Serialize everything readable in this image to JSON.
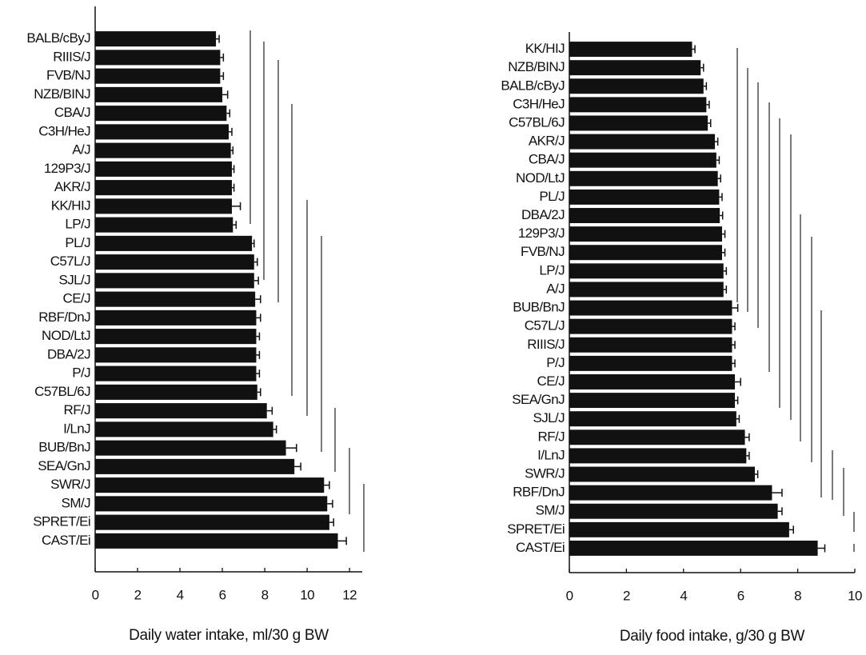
{
  "chart_data": [
    {
      "type": "bar",
      "orientation": "horizontal",
      "color": "#111111",
      "xlabel": "Daily water intake, ml/30 g BW",
      "categories": [
        "BALB/cByJ",
        "RIIIS/J",
        "FVB/NJ",
        "NZB/BINJ",
        "CBA/J",
        "C3H/HeJ",
        "A/J",
        "129P3/J",
        "AKR/J",
        "KK/HIJ",
        "LP/J",
        "PL/J",
        "C57L/J",
        "SJL/J",
        "CE/J",
        "RBF/DnJ",
        "NOD/LtJ",
        "DBA/2J",
        "P/J",
        "C57BL/6J",
        "RF/J",
        "I/LnJ",
        "BUB/BnJ",
        "SEA/GnJ",
        "SWR/J",
        "SM/J",
        "SPRET/Ei",
        "CAST/Ei"
      ],
      "values": [
        5.7,
        5.9,
        5.9,
        6.0,
        6.2,
        6.3,
        6.4,
        6.45,
        6.45,
        6.45,
        6.5,
        7.4,
        7.5,
        7.5,
        7.55,
        7.6,
        7.6,
        7.6,
        7.6,
        7.65,
        8.1,
        8.4,
        9.0,
        9.4,
        10.8,
        10.95,
        11.05,
        11.45
      ],
      "errors": [
        0.15,
        0.15,
        0.15,
        0.25,
        0.15,
        0.15,
        0.1,
        0.1,
        0.1,
        0.4,
        0.15,
        0.1,
        0.15,
        0.2,
        0.25,
        0.2,
        0.15,
        0.15,
        0.15,
        0.15,
        0.25,
        0.15,
        0.5,
        0.3,
        0.25,
        0.25,
        0.2,
        0.4
      ],
      "xlim": [
        0,
        12.6
      ],
      "xticks": [
        0,
        2,
        4,
        6,
        8,
        10,
        12
      ]
    },
    {
      "type": "bar",
      "orientation": "horizontal",
      "color": "#111111",
      "xlabel": "Daily food intake, g/30 g BW",
      "categories": [
        "KK/HIJ",
        "NZB/BINJ",
        "BALB/cByJ",
        "C3H/HeJ",
        "C57BL/6J",
        "AKR/J",
        "CBA/J",
        "NOD/LtJ",
        "PL/J",
        "DBA/2J",
        "129P3/J",
        "FVB/NJ",
        "LP/J",
        "A/J",
        "BUB/BnJ",
        "C57L/J",
        "RIIIS/J",
        "P/J",
        "CE/J",
        "SEA/GnJ",
        "SJL/J",
        "RF/J",
        "I/LnJ",
        "SWR/J",
        "RBF/DnJ",
        "SM/J",
        "SPRET/Ei",
        "CAST/Ei"
      ],
      "values": [
        4.3,
        4.6,
        4.7,
        4.8,
        4.85,
        5.1,
        5.15,
        5.2,
        5.25,
        5.27,
        5.35,
        5.35,
        5.4,
        5.4,
        5.7,
        5.7,
        5.7,
        5.7,
        5.8,
        5.8,
        5.85,
        6.15,
        6.2,
        6.5,
        7.1,
        7.3,
        7.7,
        8.7
      ],
      "errors": [
        0.1,
        0.1,
        0.1,
        0.1,
        0.1,
        0.1,
        0.1,
        0.1,
        0.1,
        0.1,
        0.1,
        0.1,
        0.1,
        0.1,
        0.2,
        0.1,
        0.1,
        0.1,
        0.2,
        0.1,
        0.1,
        0.15,
        0.1,
        0.1,
        0.35,
        0.15,
        0.15,
        0.25
      ],
      "xlim": [
        0,
        10
      ],
      "xticks": [
        0,
        2,
        4,
        6,
        8,
        10
      ]
    }
  ]
}
